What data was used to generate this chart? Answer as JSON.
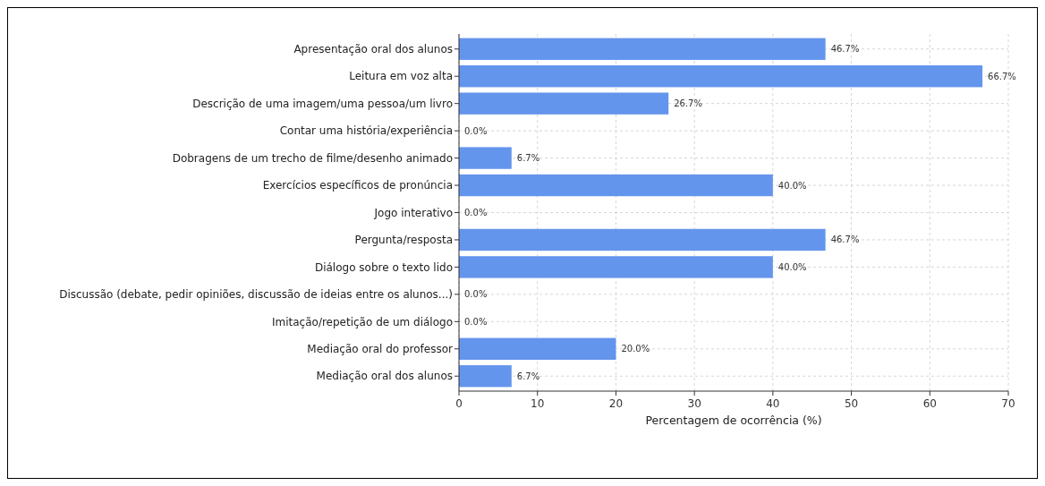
{
  "chart_data": {
    "type": "bar",
    "orientation": "horizontal",
    "xlabel": "Percentagem de ocorrência (%)",
    "categories": [
      "Apresentação oral dos alunos",
      "Leitura em voz alta",
      "Descrição de uma imagem/uma pessoa/um livro",
      "Contar uma história/experiência",
      "Dobragens de um trecho de filme/desenho animado",
      "Exercícios específicos de pronúncia",
      "Jogo interativo",
      "Pergunta/resposta",
      "Diálogo sobre o texto lido",
      "Discussão (debate, pedir opiniões, discussão de ideias entre os alunos...)",
      "Imitação/repetição de um diálogo",
      "Mediação oral do professor",
      "Mediação oral dos alunos"
    ],
    "values": [
      46.7,
      66.7,
      26.7,
      0.0,
      6.7,
      40.0,
      0.0,
      46.7,
      40.0,
      0.0,
      0.0,
      20.0,
      6.7
    ],
    "value_labels": [
      "46.7%",
      "66.7%",
      "26.7%",
      "0.0%",
      "6.7%",
      "40.0%",
      "0.0%",
      "46.7%",
      "40.0%",
      "0.0%",
      "0.0%",
      "20.0%",
      "6.7%"
    ],
    "color": "#6495ed",
    "xlim": [
      0,
      70
    ],
    "xticks": [
      0,
      10,
      20,
      30,
      40,
      50,
      60,
      70
    ],
    "grid": true
  }
}
